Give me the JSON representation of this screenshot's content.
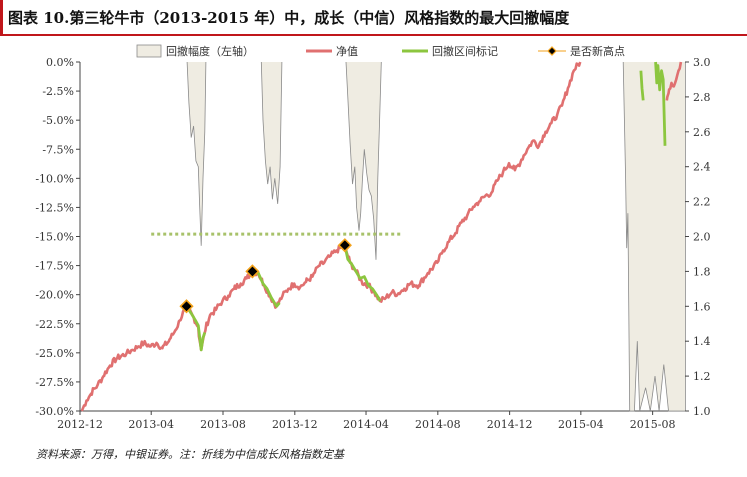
{
  "title": "图表 10.第三轮牛市（2013-2015 年）中，成长（中信）风格指数的最大回撤幅度",
  "source": "资料来源：万得，中银证券。注：折线为中信成长风格指数定基",
  "colors": {
    "accent": "#c0161b",
    "nav": "#e07070",
    "drawdown_mark": "#8cc63f",
    "area_fill": "#efece2",
    "area_line": "#8a8a8a",
    "hline": "#a8c26a",
    "marker": "#f3a21b"
  },
  "chart_data": {
    "type": "line",
    "x_tick_labels": [
      "2012-12",
      "2013-04",
      "2013-08",
      "2013-12",
      "2014-04",
      "2014-08",
      "2014-12",
      "2015-04",
      "2015-08"
    ],
    "x_range": [
      "2012-12-01",
      "2015-09-25"
    ],
    "left_axis": {
      "label": "回撤幅度（左轴）",
      "min": -30,
      "max": 0,
      "ticks": [
        0,
        -2.5,
        -5,
        -7.5,
        -10,
        -12.5,
        -15,
        -17.5,
        -20,
        -22.5,
        -25,
        -27.5,
        -30
      ],
      "tick_labels": [
        "0.0%",
        "-2.5%",
        "-5.0%",
        "-7.5%",
        "-10.0%",
        "-12.5%",
        "-15.0%",
        "-17.5%",
        "-20.0%",
        "-22.5%",
        "-25.0%",
        "-27.5%",
        "-30.0%"
      ]
    },
    "right_axis": {
      "min": 1.0,
      "max": 3.0,
      "ticks": [
        1.0,
        1.2,
        1.4,
        1.6,
        1.8,
        2.0,
        2.2,
        2.4,
        2.6,
        2.8,
        3.0
      ],
      "tick_labels": [
        "1.0",
        "1.2",
        "1.4",
        "1.6",
        "1.8",
        "2.0",
        "2.2",
        "2.4",
        "2.6",
        "2.8",
        "3.0"
      ]
    },
    "legend": {
      "placement": "top",
      "entries": [
        "回撤幅度（左轴）",
        "净值",
        "回撤区间标记",
        "是否新高点"
      ]
    },
    "drawdown_series": {
      "name": "回撤幅度（左轴）",
      "axis": "left",
      "points": [
        [
          "2013-06-01",
          0
        ],
        [
          "2013-06-04",
          -3.5
        ],
        [
          "2013-06-08",
          -6.5
        ],
        [
          "2013-06-12",
          -5.5
        ],
        [
          "2013-06-16",
          -8.5
        ],
        [
          "2013-06-20",
          -9.0
        ],
        [
          "2013-06-22",
          -12.0
        ],
        [
          "2013-06-25",
          -15.8
        ],
        [
          "2013-06-28",
          -10.0
        ],
        [
          "2013-07-01",
          -6.0
        ],
        [
          "2013-07-03",
          0
        ],
        [
          "2013-10-05",
          0
        ],
        [
          "2013-10-08",
          -5.0
        ],
        [
          "2013-10-12",
          -8.5
        ],
        [
          "2013-10-16",
          -10.5
        ],
        [
          "2013-10-20",
          -9.0
        ],
        [
          "2013-10-24",
          -11.8
        ],
        [
          "2013-10-28",
          -10.0
        ],
        [
          "2013-11-02",
          -12.2
        ],
        [
          "2013-11-06",
          -9.0
        ],
        [
          "2013-11-09",
          0
        ],
        [
          "2014-02-26",
          0
        ],
        [
          "2014-03-01",
          -3.0
        ],
        [
          "2014-03-05",
          -7.0
        ],
        [
          "2014-03-09",
          -10.5
        ],
        [
          "2014-03-13",
          -9.0
        ],
        [
          "2014-03-16",
          -12.5
        ],
        [
          "2014-03-20",
          -14.5
        ],
        [
          "2014-03-23",
          -13.0
        ],
        [
          "2014-03-26",
          -10.0
        ],
        [
          "2014-03-29",
          -7.5
        ],
        [
          "2014-04-02",
          -9.5
        ],
        [
          "2014-04-06",
          -11.0
        ],
        [
          "2014-04-10",
          -11.5
        ],
        [
          "2014-04-14",
          -13.5
        ],
        [
          "2014-04-18",
          -17.0
        ],
        [
          "2014-04-21",
          -10.0
        ],
        [
          "2014-04-24",
          -5.0
        ],
        [
          "2014-04-27",
          0
        ],
        [
          "2015-06-12",
          0
        ],
        [
          "2015-06-16",
          -10.0
        ],
        [
          "2015-06-18",
          -16.0
        ],
        [
          "2015-06-20",
          -13.0
        ],
        [
          "2015-06-23",
          -30.0
        ],
        [
          "2015-07-01",
          -30.0
        ],
        [
          "2015-07-06",
          -24.0
        ],
        [
          "2015-07-10",
          -30.0
        ],
        [
          "2015-07-20",
          -28.0
        ],
        [
          "2015-07-28",
          -30.0
        ],
        [
          "2015-08-05",
          -27.0
        ],
        [
          "2015-08-12",
          -30.0
        ],
        [
          "2015-08-20",
          -26.0
        ],
        [
          "2015-08-28",
          -30.0
        ],
        [
          "2015-09-10",
          -30.0
        ],
        [
          "2015-09-25",
          -30.0
        ]
      ]
    },
    "nav_series": {
      "name": "净值",
      "axis": "right",
      "points": [
        [
          "2012-12-04",
          1.0
        ],
        [
          "2012-12-12",
          1.06
        ],
        [
          "2012-12-20",
          1.1
        ],
        [
          "2012-12-31",
          1.15
        ],
        [
          "2013-01-10",
          1.2
        ],
        [
          "2013-01-21",
          1.26
        ],
        [
          "2013-02-01",
          1.3
        ],
        [
          "2013-02-18",
          1.33
        ],
        [
          "2013-02-28",
          1.35
        ],
        [
          "2013-03-10",
          1.37
        ],
        [
          "2013-03-20",
          1.39
        ],
        [
          "2013-03-31",
          1.37
        ],
        [
          "2013-04-10",
          1.39
        ],
        [
          "2013-04-20",
          1.36
        ],
        [
          "2013-05-01",
          1.4
        ],
        [
          "2013-05-10",
          1.45
        ],
        [
          "2013-05-20",
          1.52
        ],
        [
          "2013-05-31",
          1.6
        ],
        [
          "2013-06-10",
          1.55
        ],
        [
          "2013-06-20",
          1.48
        ],
        [
          "2013-06-25",
          1.35
        ],
        [
          "2013-07-01",
          1.45
        ],
        [
          "2013-07-10",
          1.55
        ],
        [
          "2013-07-20",
          1.58
        ],
        [
          "2013-07-31",
          1.63
        ],
        [
          "2013-08-10",
          1.66
        ],
        [
          "2013-08-20",
          1.7
        ],
        [
          "2013-08-31",
          1.73
        ],
        [
          "2013-09-10",
          1.76
        ],
        [
          "2013-09-20",
          1.8
        ],
        [
          "2013-09-30",
          1.79
        ],
        [
          "2013-10-10",
          1.72
        ],
        [
          "2013-10-20",
          1.66
        ],
        [
          "2013-10-31",
          1.6
        ],
        [
          "2013-11-10",
          1.66
        ],
        [
          "2013-11-20",
          1.7
        ],
        [
          "2013-11-30",
          1.73
        ],
        [
          "2013-12-10",
          1.71
        ],
        [
          "2013-12-20",
          1.74
        ],
        [
          "2013-12-31",
          1.77
        ],
        [
          "2014-01-10",
          1.83
        ],
        [
          "2014-01-20",
          1.85
        ],
        [
          "2014-01-31",
          1.89
        ],
        [
          "2014-02-10",
          1.92
        ],
        [
          "2014-02-24",
          1.95
        ],
        [
          "2014-03-05",
          1.85
        ],
        [
          "2014-03-15",
          1.8
        ],
        [
          "2014-03-25",
          1.74
        ],
        [
          "2014-04-05",
          1.72
        ],
        [
          "2014-04-15",
          1.68
        ],
        [
          "2014-04-25",
          1.63
        ],
        [
          "2014-05-05",
          1.65
        ],
        [
          "2014-05-15",
          1.68
        ],
        [
          "2014-05-25",
          1.67
        ],
        [
          "2014-06-05",
          1.7
        ],
        [
          "2014-06-15",
          1.73
        ],
        [
          "2014-06-30",
          1.72
        ],
        [
          "2014-07-15",
          1.79
        ],
        [
          "2014-07-31",
          1.85
        ],
        [
          "2014-08-10",
          1.92
        ],
        [
          "2014-08-20",
          1.97
        ],
        [
          "2014-08-31",
          2.02
        ],
        [
          "2014-09-10",
          2.08
        ],
        [
          "2014-09-20",
          2.12
        ],
        [
          "2014-09-30",
          2.17
        ],
        [
          "2014-10-10",
          2.2
        ],
        [
          "2014-10-20",
          2.23
        ],
        [
          "2014-10-31",
          2.25
        ],
        [
          "2014-11-10",
          2.32
        ],
        [
          "2014-11-20",
          2.37
        ],
        [
          "2014-11-30",
          2.42
        ],
        [
          "2014-12-10",
          2.38
        ],
        [
          "2014-12-20",
          2.43
        ],
        [
          "2014-12-31",
          2.5
        ],
        [
          "2015-01-10",
          2.55
        ],
        [
          "2015-01-20",
          2.52
        ],
        [
          "2015-01-31",
          2.6
        ],
        [
          "2015-02-10",
          2.65
        ],
        [
          "2015-02-20",
          2.7
        ],
        [
          "2015-02-28",
          2.75
        ],
        [
          "2015-03-10",
          2.85
        ],
        [
          "2015-03-20",
          2.95
        ],
        [
          "2015-03-31",
          3.0
        ]
      ]
    },
    "nav_tail_series": {
      "name": "净值",
      "axis": "right",
      "points": [
        [
          "2015-08-25",
          2.78
        ],
        [
          "2015-08-28",
          2.82
        ],
        [
          "2015-09-02",
          2.88
        ],
        [
          "2015-09-06",
          2.86
        ],
        [
          "2015-09-10",
          2.9
        ],
        [
          "2015-09-14",
          2.95
        ],
        [
          "2015-09-18",
          3.0
        ]
      ]
    },
    "drawdown_marks": {
      "name": "回撤区间标记",
      "axis": "right",
      "segments": [
        [
          [
            "2013-05-31",
            1.6
          ],
          [
            "2013-06-08",
            1.56
          ],
          [
            "2013-06-15",
            1.52
          ],
          [
            "2013-06-20",
            1.49
          ],
          [
            "2013-06-25",
            1.35
          ],
          [
            "2013-06-28",
            1.42
          ],
          [
            "2013-07-01",
            1.45
          ]
        ],
        [
          [
            "2013-09-20",
            1.8
          ],
          [
            "2013-09-30",
            1.79
          ],
          [
            "2013-10-08",
            1.73
          ],
          [
            "2013-10-15",
            1.7
          ],
          [
            "2013-10-22",
            1.65
          ],
          [
            "2013-10-31",
            1.6
          ],
          [
            "2013-11-05",
            1.62
          ]
        ],
        [
          [
            "2014-02-24",
            1.95
          ],
          [
            "2014-03-01",
            1.87
          ],
          [
            "2014-03-08",
            1.84
          ],
          [
            "2014-03-15",
            1.8
          ],
          [
            "2014-03-22",
            1.76
          ],
          [
            "2014-03-29",
            1.77
          ],
          [
            "2014-04-05",
            1.72
          ],
          [
            "2014-04-12",
            1.7
          ],
          [
            "2014-04-20",
            1.66
          ],
          [
            "2014-04-25",
            1.63
          ]
        ],
        [
          [
            "2015-07-12",
            2.95
          ],
          [
            "2015-07-14",
            2.85
          ],
          [
            "2015-07-16",
            2.78
          ]
        ],
        [
          [
            "2015-08-06",
            3.0
          ],
          [
            "2015-08-08",
            2.88
          ],
          [
            "2015-08-10",
            2.98
          ],
          [
            "2015-08-13",
            2.84
          ],
          [
            "2015-08-16",
            2.95
          ],
          [
            "2015-08-19",
            2.9
          ],
          [
            "2015-08-22",
            2.52
          ]
        ]
      ]
    },
    "hline": {
      "axis": "left",
      "y": -14.8,
      "x_start": "2013-04-01",
      "x_end": "2014-05-31"
    },
    "new_high_points": {
      "name": "是否新高点",
      "axis": "right",
      "points": [
        [
          "2013-05-31",
          1.6
        ],
        [
          "2013-09-20",
          1.8
        ],
        [
          "2014-02-24",
          1.95
        ]
      ]
    }
  }
}
